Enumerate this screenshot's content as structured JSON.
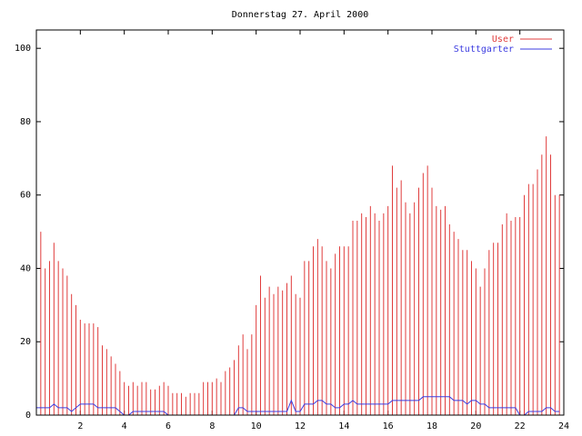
{
  "chart_data": {
    "type": "line",
    "title": "Donnerstag 27. April 2000",
    "x": [
      0,
      0.2,
      0.4,
      0.6,
      0.8,
      1,
      1.2,
      1.4,
      1.6,
      1.8,
      2,
      2.2,
      2.4,
      2.6,
      2.8,
      3,
      3.2,
      3.4,
      3.6,
      3.8,
      4,
      4.2,
      4.4,
      4.6,
      4.8,
      5,
      5.2,
      5.4,
      5.6,
      5.8,
      6,
      6.2,
      6.4,
      6.6,
      6.8,
      7,
      7.2,
      7.4,
      7.6,
      7.8,
      8,
      8.2,
      8.4,
      8.6,
      8.8,
      9,
      9.2,
      9.4,
      9.6,
      9.8,
      10,
      10.2,
      10.4,
      10.6,
      10.8,
      11,
      11.2,
      11.4,
      11.6,
      11.8,
      12,
      12.2,
      12.4,
      12.6,
      12.8,
      13,
      13.2,
      13.4,
      13.6,
      13.8,
      14,
      14.2,
      14.4,
      14.6,
      14.8,
      15,
      15.2,
      15.4,
      15.6,
      15.8,
      16,
      16.2,
      16.4,
      16.6,
      16.8,
      17,
      17.2,
      17.4,
      17.6,
      17.8,
      18,
      18.2,
      18.4,
      18.6,
      18.8,
      19,
      19.2,
      19.4,
      19.6,
      19.8,
      20,
      20.2,
      20.4,
      20.6,
      20.8,
      21,
      21.2,
      21.4,
      21.6,
      21.8,
      22,
      22.2,
      22.4,
      22.6,
      22.8,
      23,
      23.2,
      23.4,
      23.6,
      23.8
    ],
    "series": [
      {
        "name": "User",
        "color": "#e03c3c",
        "style": "impulses",
        "values": [
          44,
          50,
          40,
          42,
          47,
          42,
          40,
          38,
          33,
          30,
          26,
          25,
          25,
          25,
          24,
          19,
          18,
          16,
          14,
          12,
          9,
          8,
          9,
          8,
          9,
          9,
          7,
          7,
          8,
          9,
          8,
          6,
          6,
          6,
          5,
          6,
          6,
          6,
          9,
          9,
          9,
          10,
          9,
          12,
          13,
          15,
          19,
          22,
          18,
          22,
          30,
          38,
          32,
          35,
          33,
          35,
          34,
          36,
          38,
          33,
          32,
          42,
          42,
          46,
          48,
          46,
          42,
          40,
          44,
          46,
          46,
          46,
          53,
          53,
          55,
          54,
          57,
          55,
          53,
          55,
          57,
          68,
          62,
          64,
          58,
          55,
          58,
          62,
          66,
          68,
          62,
          57,
          56,
          57,
          52,
          50,
          48,
          45,
          45,
          42,
          40,
          35,
          40,
          45,
          47,
          47,
          52,
          55,
          53,
          54,
          54,
          60,
          63,
          63,
          67,
          71,
          76,
          71,
          60,
          60
        ]
      },
      {
        "name": "Stuttgarter",
        "color": "#3c3ce0",
        "style": "lines",
        "values": [
          2,
          2,
          2,
          2,
          3,
          2,
          2,
          2,
          1,
          2,
          3,
          3,
          3,
          3,
          2,
          2,
          2,
          2,
          2,
          1,
          0,
          0,
          1,
          1,
          1,
          1,
          1,
          1,
          1,
          1,
          0,
          0,
          0,
          0,
          0,
          0,
          0,
          0,
          0,
          0,
          0,
          0,
          0,
          0,
          0,
          0,
          2,
          2,
          1,
          1,
          1,
          1,
          1,
          1,
          1,
          1,
          1,
          1,
          4,
          1,
          1,
          3,
          3,
          3,
          4,
          4,
          3,
          3,
          2,
          2,
          3,
          3,
          4,
          3,
          3,
          3,
          3,
          3,
          3,
          3,
          3,
          4,
          4,
          4,
          4,
          4,
          4,
          4,
          5,
          5,
          5,
          5,
          5,
          5,
          5,
          4,
          4,
          4,
          3,
          4,
          4,
          3,
          3,
          2,
          2,
          2,
          2,
          2,
          2,
          2,
          0,
          0,
          1,
          1,
          1,
          1,
          2,
          2,
          1,
          1
        ]
      }
    ],
    "xlim": [
      0,
      24
    ],
    "xticks": [
      2,
      4,
      6,
      8,
      10,
      12,
      14,
      16,
      18,
      20,
      22,
      24
    ],
    "ylim": [
      0,
      105
    ],
    "yticks": [
      0,
      20,
      40,
      60,
      80,
      100
    ],
    "legend": "top-right"
  }
}
